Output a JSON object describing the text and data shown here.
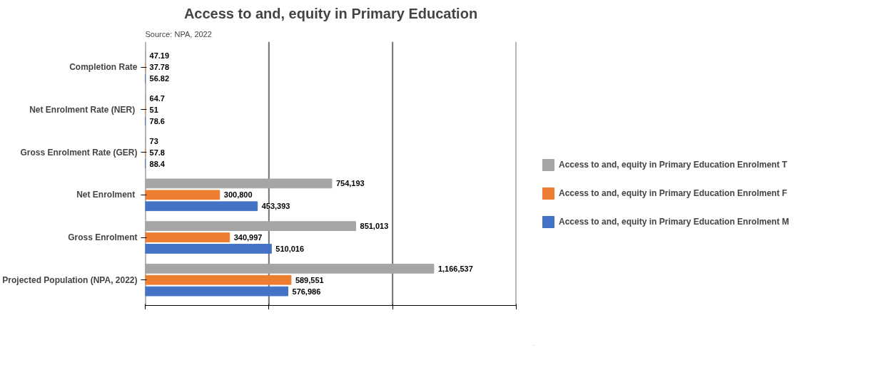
{
  "chart_data": {
    "type": "bar",
    "orientation": "horizontal",
    "title": "Access to and, equity in Primary Education",
    "annotations": [
      "Source: NPA, 2022"
    ],
    "categories": [
      "Completion Rate",
      "Net  Enrolment Rate (NER)",
      "Gross Enrolment Rate (GER)",
      "Net  Enrolment",
      "Gross Enrolment",
      "Projected Population (NPA, 2022)"
    ],
    "series": [
      {
        "name": "Access to and, equity in Primary Education Enrolment T",
        "color": "#a5a5a5",
        "values": [
          47.19,
          64.7,
          73,
          754193,
          851013,
          1166537
        ],
        "value_labels": [
          "47.19",
          "64.7",
          "73",
          "754,193",
          "851,013",
          "1,166,537"
        ]
      },
      {
        "name": "Access to and, equity in Primary Education Enrolment F",
        "color": "#ed7d31",
        "values": [
          37.78,
          51,
          57.8,
          300800,
          340997,
          589551
        ],
        "value_labels": [
          "37.78",
          "51",
          "57.8",
          "300,800",
          "340,997",
          "589,551"
        ]
      },
      {
        "name": "Access to and, equity in Primary Education Enrolment M",
        "color": "#4472c4",
        "values": [
          56.82,
          78.6,
          88.4,
          453393,
          510016,
          576986
        ],
        "value_labels": [
          "56.82",
          "78.6",
          "88.4",
          "453,393",
          "510,016",
          "576,986"
        ]
      }
    ],
    "xlim": [
      0,
      1500000
    ],
    "xticks": [
      {
        "value": 0,
        "label": null
      },
      {
        "value": 500000,
        "label": null
      },
      {
        "value": 1000000,
        "label": null
      },
      {
        "value": 1500000,
        "label": null
      }
    ],
    "tick_labels": "y",
    "grid": "x",
    "legend": "right"
  }
}
